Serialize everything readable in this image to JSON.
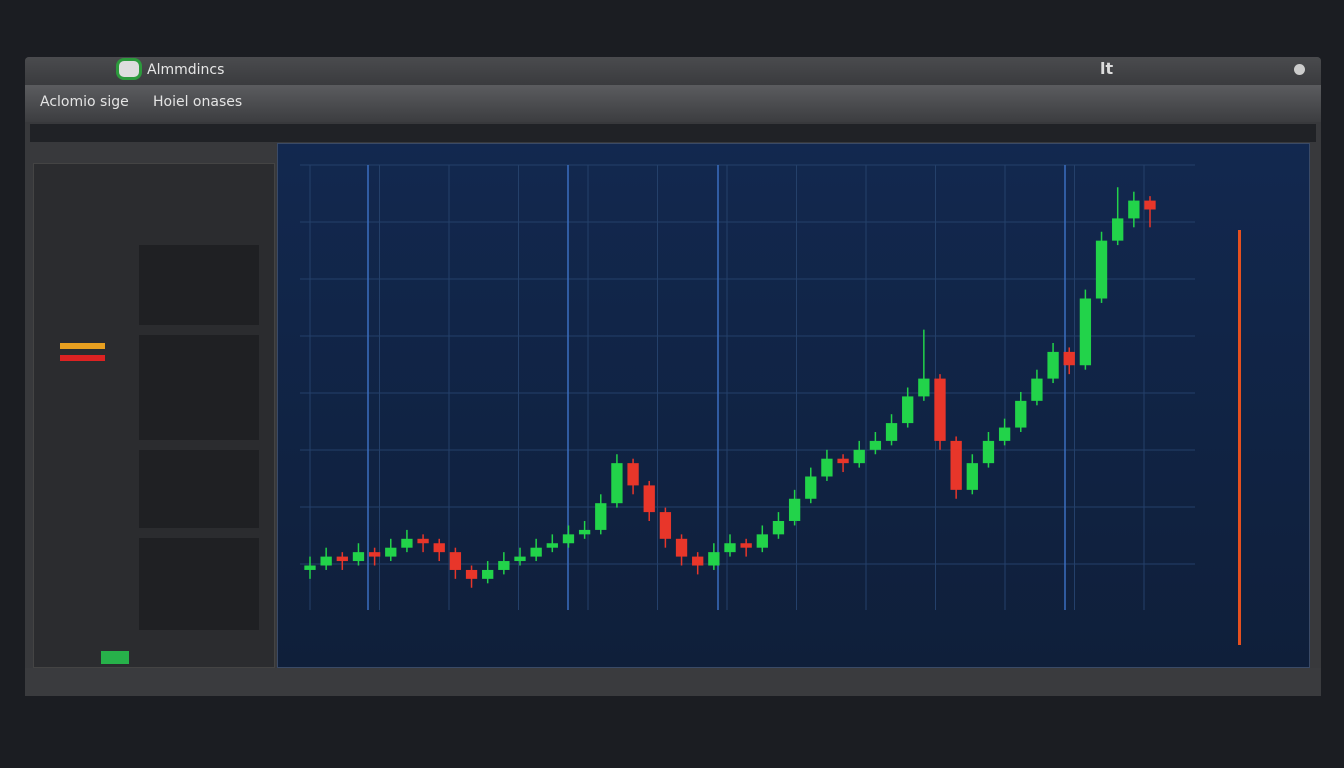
{
  "window": {
    "title": "Almmdincs",
    "corner_label": "lt"
  },
  "toolbar": {
    "tabs": [
      "Aclomio sige",
      "Hoiel onases"
    ]
  },
  "chart_data": {
    "type": "candlestick",
    "up_color": "#22d34a",
    "down_color": "#e8362a",
    "ylim": [
      0,
      100
    ],
    "candles": [
      [
        9,
        12,
        7,
        10
      ],
      [
        10,
        14,
        9,
        12
      ],
      [
        12,
        13,
        9,
        11
      ],
      [
        11,
        15,
        10,
        13
      ],
      [
        13,
        14,
        10,
        12
      ],
      [
        12,
        16,
        11,
        14
      ],
      [
        14,
        18,
        13,
        16
      ],
      [
        16,
        17,
        13,
        15
      ],
      [
        15,
        16,
        11,
        13
      ],
      [
        13,
        14,
        7,
        9
      ],
      [
        9,
        10,
        5,
        7
      ],
      [
        7,
        11,
        6,
        9
      ],
      [
        9,
        13,
        8,
        11
      ],
      [
        11,
        14,
        10,
        12
      ],
      [
        12,
        16,
        11,
        14
      ],
      [
        14,
        17,
        13,
        15
      ],
      [
        15,
        19,
        14,
        17
      ],
      [
        17,
        20,
        16,
        18
      ],
      [
        18,
        26,
        17,
        24
      ],
      [
        24,
        35,
        23,
        33
      ],
      [
        33,
        34,
        26,
        28
      ],
      [
        28,
        29,
        20,
        22
      ],
      [
        22,
        23,
        14,
        16
      ],
      [
        16,
        17,
        10,
        12
      ],
      [
        12,
        13,
        8,
        10
      ],
      [
        10,
        15,
        9,
        13
      ],
      [
        13,
        17,
        12,
        15
      ],
      [
        15,
        16,
        12,
        14
      ],
      [
        14,
        19,
        13,
        17
      ],
      [
        17,
        22,
        16,
        20
      ],
      [
        20,
        27,
        19,
        25
      ],
      [
        25,
        32,
        24,
        30
      ],
      [
        30,
        36,
        29,
        34
      ],
      [
        34,
        35,
        31,
        33
      ],
      [
        33,
        38,
        32,
        36
      ],
      [
        36,
        40,
        35,
        38
      ],
      [
        38,
        44,
        37,
        42
      ],
      [
        42,
        50,
        41,
        48
      ],
      [
        48,
        63,
        47,
        52
      ],
      [
        52,
        53,
        36,
        38
      ],
      [
        38,
        39,
        25,
        27
      ],
      [
        27,
        35,
        26,
        33
      ],
      [
        33,
        40,
        32,
        38
      ],
      [
        38,
        43,
        37,
        41
      ],
      [
        41,
        49,
        40,
        47
      ],
      [
        47,
        54,
        46,
        52
      ],
      [
        52,
        60,
        51,
        58
      ],
      [
        58,
        59,
        53,
        55
      ],
      [
        55,
        72,
        54,
        70
      ],
      [
        70,
        85,
        69,
        83
      ],
      [
        83,
        95,
        82,
        88
      ],
      [
        88,
        94,
        86,
        92
      ],
      [
        92,
        93,
        86,
        90
      ]
    ]
  }
}
